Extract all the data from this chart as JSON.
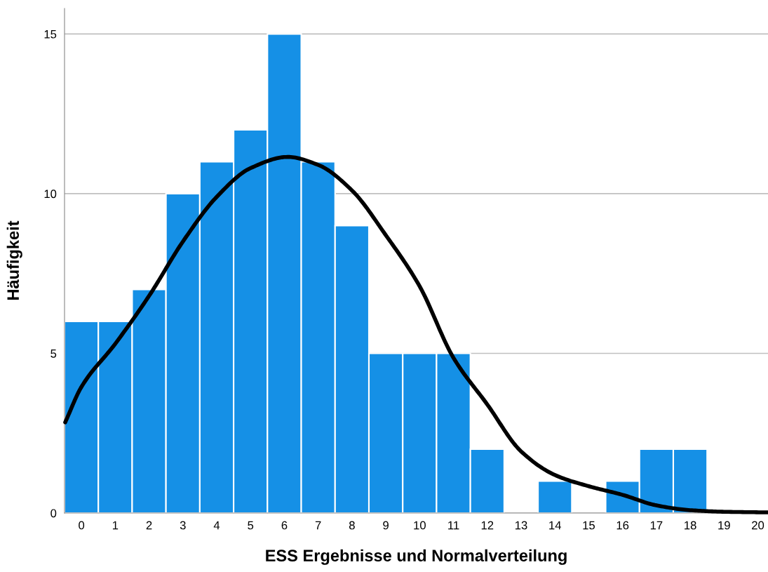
{
  "chart_data": {
    "type": "histogram",
    "xlabel": "ESS Ergebnisse und Normalverteilung",
    "ylabel": "Häufigkeit",
    "bins": [
      -0.5,
      0.5,
      1.5,
      2.5,
      3.5,
      4.5,
      5.5,
      6.5,
      7.5,
      8.5,
      9.5,
      10.5,
      11.5,
      12.5,
      13.5,
      14.5,
      15.5,
      16.5,
      17.5,
      18.5
    ],
    "values": [
      6,
      6,
      7,
      10,
      11,
      12,
      15,
      11,
      9,
      5,
      5,
      5,
      2,
      0,
      1,
      0,
      1,
      2,
      2
    ],
    "color": "#1590e6",
    "series": [
      {
        "type": "line",
        "color": "#000000",
        "x": [
          -0.48,
          0,
          1,
          2,
          3,
          4,
          5,
          6.1,
          7,
          8,
          9,
          10,
          11,
          12,
          13,
          14,
          15,
          16,
          17,
          18,
          19,
          20.3
        ],
        "values": [
          2.84,
          3.95,
          5.3,
          6.8,
          8.5,
          9.9,
          10.8,
          11.15,
          10.9,
          10.1,
          8.7,
          7.1,
          4.86,
          3.4,
          1.93,
          1.19,
          0.84,
          0.57,
          0.24,
          0.09,
          0.04,
          0.02
        ]
      }
    ],
    "xlim": [
      -0.5,
      20.3
    ],
    "xticks": [
      0,
      1,
      2,
      3,
      4,
      5,
      6,
      7,
      8,
      9,
      10,
      11,
      12,
      13,
      14,
      15,
      16,
      17,
      18,
      19,
      20
    ],
    "ylim": [
      0,
      15.8
    ],
    "yticks": [
      0,
      5,
      10,
      15
    ],
    "grid": "y"
  }
}
